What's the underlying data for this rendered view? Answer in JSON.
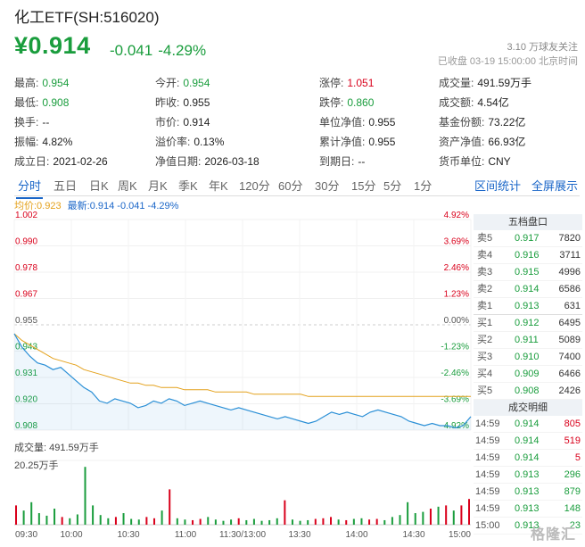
{
  "header": {
    "title": "化工ETF(SH:516020)",
    "price": "¥0.914",
    "change": "-0.041",
    "change_pct": "-4.29%",
    "follow": "3.10 万球友关注",
    "status": "已收盘 03-19 15:00:00 北京时间"
  },
  "stats": [
    [
      {
        "label": "最高:",
        "value": "0.954",
        "color": "green"
      },
      {
        "label": "今开:",
        "value": "0.954",
        "color": "green"
      },
      {
        "label": "涨停:",
        "value": "1.051",
        "color": "red"
      },
      {
        "label": "成交量:",
        "value": "491.59万手"
      }
    ],
    [
      {
        "label": "最低:",
        "value": "0.908",
        "color": "green"
      },
      {
        "label": "昨收:",
        "value": "0.955"
      },
      {
        "label": "跌停:",
        "value": "0.860",
        "color": "green"
      },
      {
        "label": "成交额:",
        "value": "4.54亿"
      }
    ],
    [
      {
        "label": "换手:",
        "value": "--"
      },
      {
        "label": "市价:",
        "value": "0.914"
      },
      {
        "label": "单位净值:",
        "value": "0.955"
      },
      {
        "label": "基金份额:",
        "value": "73.22亿"
      }
    ],
    [
      {
        "label": "振幅:",
        "value": "4.82%"
      },
      {
        "label": "溢价率:",
        "value": "0.13%"
      },
      {
        "label": "累计净值:",
        "value": "0.955"
      },
      {
        "label": "资产净值:",
        "value": "66.93亿"
      }
    ],
    [
      {
        "label": "成立日:",
        "value": "2021-02-26"
      },
      {
        "label": "净值日期:",
        "value": "2026-03-18"
      },
      {
        "label": "到期日:",
        "value": "--"
      },
      {
        "label": "货币单位:",
        "value": "CNY"
      }
    ]
  ],
  "tabs": [
    "分时",
    "五日",
    "日K",
    "周K",
    "月K",
    "季K",
    "年K",
    "120分",
    "60分",
    "30分",
    "15分",
    "5分",
    "1分"
  ],
  "tab_links": [
    "区间统计",
    "全屏展示"
  ],
  "legend": {
    "avg": "均价:0.923",
    "latest": "最新:0.914 -0.041 -4.29%"
  },
  "volume": {
    "label": "成交量: 491.59万手",
    "max": "20.25万手"
  },
  "colors": {
    "up": "#d9001b",
    "down": "#1a9d3d",
    "price_line": "#2a8fd6",
    "avg_line": "#e4a11b",
    "accent": "#1a66c8"
  },
  "chart_data": {
    "type": "line",
    "y_left_ticks": [
      "1.002",
      "0.990",
      "0.978",
      "0.967",
      "0.955",
      "0.943",
      "0.931",
      "0.920",
      "0.908"
    ],
    "y_right_ticks": [
      "4.92%",
      "3.69%",
      "2.46%",
      "1.23%",
      "0.00%",
      "-1.23%",
      "-2.46%",
      "-3.69%",
      "-4.92%"
    ],
    "ylim": [
      0.908,
      1.002
    ],
    "x_ticks": [
      "09:30",
      "10:00",
      "10:30",
      "11:00",
      "11:30/13:00",
      "13:30",
      "14:00",
      "14:30",
      "15:00"
    ],
    "price": [
      0.951,
      0.945,
      0.941,
      0.938,
      0.937,
      0.935,
      0.936,
      0.933,
      0.93,
      0.927,
      0.925,
      0.921,
      0.92,
      0.922,
      0.921,
      0.92,
      0.918,
      0.919,
      0.921,
      0.92,
      0.922,
      0.921,
      0.919,
      0.92,
      0.921,
      0.92,
      0.919,
      0.918,
      0.917,
      0.918,
      0.917,
      0.916,
      0.915,
      0.914,
      0.913,
      0.914,
      0.913,
      0.912,
      0.911,
      0.912,
      0.914,
      0.916,
      0.915,
      0.916,
      0.915,
      0.914,
      0.916,
      0.917,
      0.916,
      0.915,
      0.914,
      0.912,
      0.911,
      0.91,
      0.911,
      0.91,
      0.91,
      0.909,
      0.91,
      0.914
    ],
    "avg": [
      0.951,
      0.948,
      0.946,
      0.944,
      0.942,
      0.94,
      0.939,
      0.938,
      0.937,
      0.935,
      0.934,
      0.933,
      0.932,
      0.931,
      0.93,
      0.929,
      0.929,
      0.928,
      0.928,
      0.927,
      0.927,
      0.927,
      0.926,
      0.926,
      0.926,
      0.926,
      0.925,
      0.925,
      0.925,
      0.925,
      0.925,
      0.924,
      0.924,
      0.924,
      0.924,
      0.924,
      0.924,
      0.924,
      0.923,
      0.923,
      0.923,
      0.923,
      0.923,
      0.923,
      0.923,
      0.923,
      0.923,
      0.923,
      0.923,
      0.923,
      0.923,
      0.923,
      0.923,
      0.923,
      0.923,
      0.923,
      0.923,
      0.923,
      0.923,
      0.923
    ],
    "volume": [
      0.3,
      0.22,
      0.35,
      0.18,
      0.14,
      0.25,
      0.12,
      0.1,
      0.16,
      0.9,
      0.3,
      0.15,
      0.1,
      0.12,
      0.18,
      0.09,
      0.08,
      0.12,
      0.1,
      0.22,
      0.55,
      0.1,
      0.08,
      0.07,
      0.09,
      0.12,
      0.08,
      0.06,
      0.08,
      0.1,
      0.07,
      0.09,
      0.06,
      0.07,
      0.1,
      0.38,
      0.08,
      0.06,
      0.07,
      0.09,
      0.1,
      0.12,
      0.08,
      0.07,
      0.09,
      0.1,
      0.08,
      0.09,
      0.07,
      0.12,
      0.15,
      0.35,
      0.18,
      0.2,
      0.25,
      0.28,
      0.3,
      0.22,
      0.3,
      0.4
    ]
  },
  "orderbook": {
    "title": "五档盘口",
    "rows": [
      {
        "label": "卖5",
        "price": "0.917",
        "vol": "7820"
      },
      {
        "label": "卖4",
        "price": "0.916",
        "vol": "3711"
      },
      {
        "label": "卖3",
        "price": "0.915",
        "vol": "4996"
      },
      {
        "label": "卖2",
        "price": "0.914",
        "vol": "6586"
      },
      {
        "label": "卖1",
        "price": "0.913",
        "vol": "631"
      },
      {
        "label": "买1",
        "price": "0.912",
        "vol": "6495"
      },
      {
        "label": "买2",
        "price": "0.911",
        "vol": "5089"
      },
      {
        "label": "买3",
        "price": "0.910",
        "vol": "7400"
      },
      {
        "label": "买4",
        "price": "0.909",
        "vol": "6466"
      },
      {
        "label": "买5",
        "price": "0.908",
        "vol": "2426"
      }
    ],
    "trades_title": "成交明细",
    "trades": [
      {
        "time": "14:59",
        "price": "0.914",
        "vol": "805",
        "dir": "red"
      },
      {
        "time": "14:59",
        "price": "0.914",
        "vol": "519",
        "dir": "red"
      },
      {
        "time": "14:59",
        "price": "0.914",
        "vol": "5",
        "dir": "red"
      },
      {
        "time": "14:59",
        "price": "0.913",
        "vol": "296",
        "dir": "green"
      },
      {
        "time": "14:59",
        "price": "0.913",
        "vol": "879",
        "dir": "green"
      },
      {
        "time": "14:59",
        "price": "0.913",
        "vol": "148",
        "dir": "green"
      },
      {
        "time": "15:00",
        "price": "0.913",
        "vol": "23",
        "dir": "green"
      }
    ]
  },
  "watermark": "格隆汇"
}
